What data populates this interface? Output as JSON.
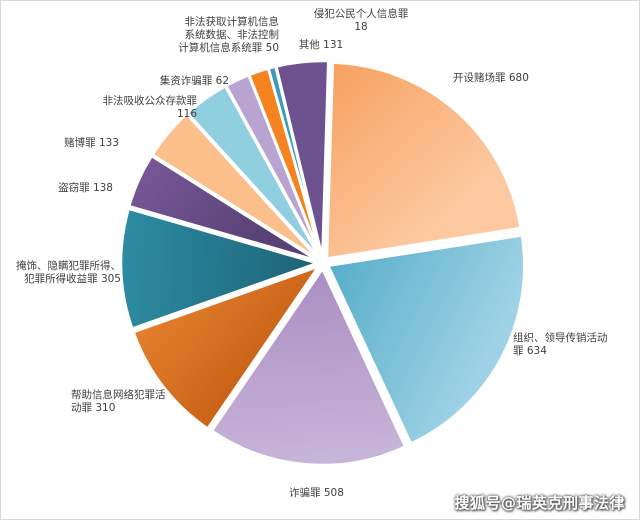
{
  "chart_data": {
    "type": "pie",
    "slices": [
      {
        "label": [
          "开设赌场罪 680"
        ],
        "value": 680,
        "color": "#f7a05f",
        "color2": "#fcc9a0"
      },
      {
        "label": [
          "组织、领导传销活动",
          "罪 634"
        ],
        "value": 634,
        "color": "#52abc7",
        "color2": "#9fd2e6"
      },
      {
        "label": [
          "诈骗罪 508"
        ],
        "value": 508,
        "color": "#a98cc1",
        "color2": "#c7b4d8"
      },
      {
        "label": [
          "帮助信息网络犯罪活",
          "动罪 310"
        ],
        "value": 310,
        "color": "#ee8a38",
        "color2": "#c65f14"
      },
      {
        "label": [
          "掩饰、隐瞒犯罪所得、",
          "犯罪所得收益罪 305"
        ],
        "value": 305,
        "color": "#2d8ca3",
        "color2": "#1d6477"
      },
      {
        "label": [
          "盗窃罪 138"
        ],
        "value": 138,
        "color": "#7b5b9a",
        "color2": "#584074"
      },
      {
        "label": [
          "赌博罪 133"
        ],
        "value": 133,
        "color": "#fbbf8c",
        "color2": "#fbbf8c"
      },
      {
        "label": [
          "非法吸收公众存款罪",
          "116"
        ],
        "value": 116,
        "color": "#8fcfe0",
        "color2": "#8fcfe0"
      },
      {
        "label": [
          "集资诈骗罪 62"
        ],
        "value": 62,
        "color": "#b9a4d1",
        "color2": "#b9a4d1"
      },
      {
        "label": [
          "非法获取计算机信息",
          "系统数据、非法控制",
          "计算机信息系统罪 50"
        ],
        "value": 50,
        "color": "#f58420",
        "color2": "#f58420"
      },
      {
        "label": [
          "侵犯公民个人信息罪",
          "18"
        ],
        "value": 18,
        "color": "#3b9cb7",
        "color2": "#3b9cb7"
      },
      {
        "label": [
          "其他 131"
        ],
        "value": 131,
        "color": "#6d5290",
        "color2": "#6d5290"
      }
    ]
  },
  "watermark": "搜狐号@瑞英克刑事法律"
}
